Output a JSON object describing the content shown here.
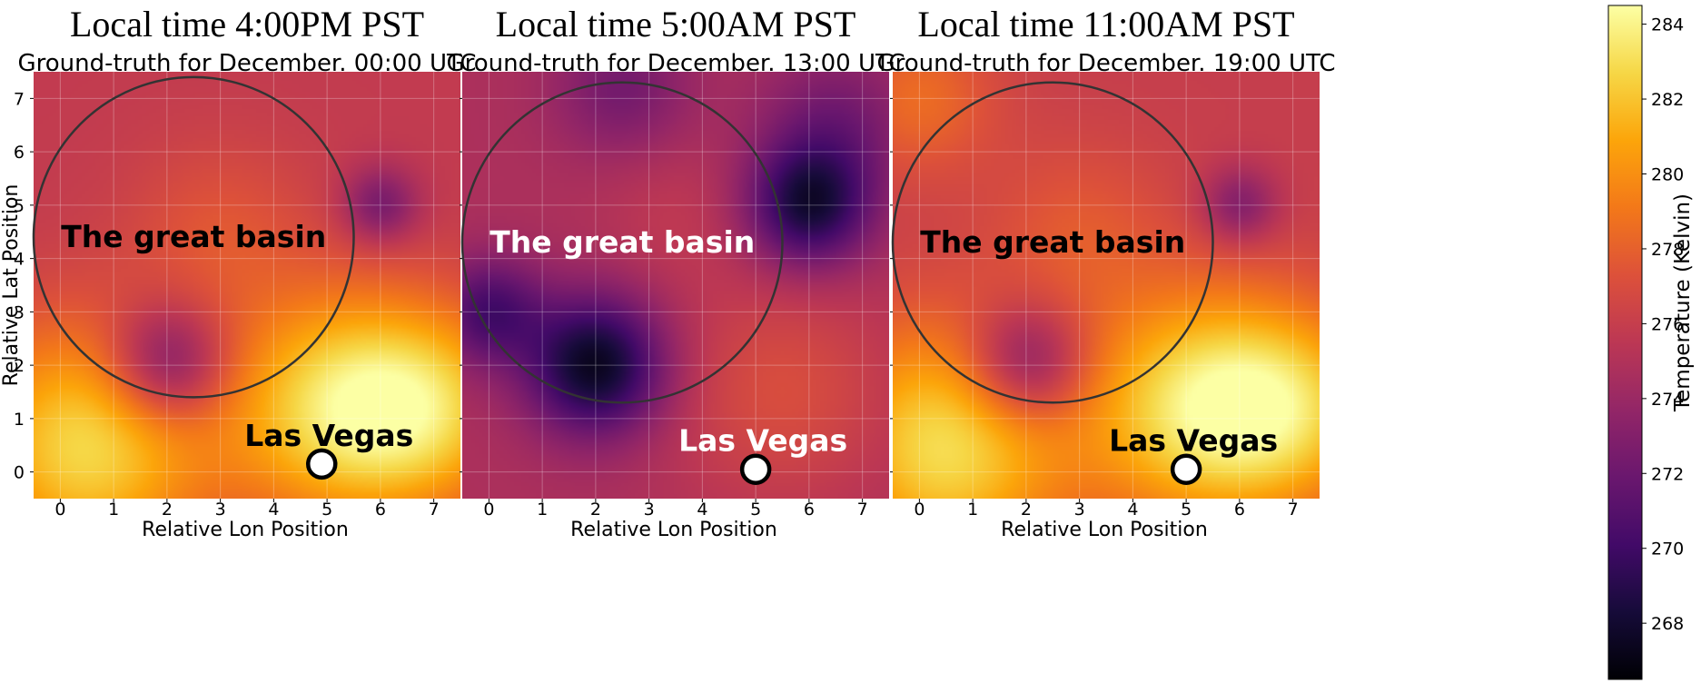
{
  "chart_data": {
    "type": "heatmap",
    "colormap": "inferno",
    "panels": [
      {
        "title": "Local time 4:00PM PST",
        "subtitle": "Ground-truth for December. 00:00 UTC",
        "xlabel": "Relative Lon Position",
        "ylabel": "Relative Lat Position",
        "xticks": [
          0,
          1,
          2,
          3,
          4,
          5,
          6,
          7
        ],
        "yticks": [
          0,
          1,
          2,
          3,
          4,
          5,
          6,
          7
        ],
        "xlim": [
          -0.5,
          7.5
        ],
        "ylim": [
          -0.5,
          7.5
        ],
        "grid": true,
        "base_temp": 275.8,
        "temperature_features": [
          {
            "x": 2,
            "y": 2,
            "delta": -5.2,
            "sigma": 0.8
          },
          {
            "x": 6,
            "y": 5,
            "delta": -3.5,
            "sigma": 0.5
          },
          {
            "x": 0.5,
            "y": 0.5,
            "delta": 7,
            "sigma": 1.6
          },
          {
            "x": 5.2,
            "y": 1.2,
            "delta": 6.8,
            "sigma": 1.5
          },
          {
            "x": 7,
            "y": 1.2,
            "delta": 5,
            "sigma": 1.3
          },
          {
            "x": 3,
            "y": 4.5,
            "delta": 1.6,
            "sigma": 1.2
          }
        ],
        "circle": {
          "cx": 2.5,
          "cy": 4.4,
          "r": 3.0
        },
        "region_label": {
          "text": "The great basin",
          "x": 2.5,
          "y": 4.4,
          "color": "#000000"
        },
        "city": {
          "name": "Las Vegas",
          "x": 4.9,
          "y": 0.15,
          "label_color": "#000000"
        }
      },
      {
        "title": "Local time 5:00AM PST",
        "subtitle": "Ground-truth for December. 13:00 UTC",
        "xlabel": "Relative Lon Position",
        "ylabel": "",
        "xticks": [
          0,
          1,
          2,
          3,
          4,
          5,
          6,
          7
        ],
        "yticks": [
          0,
          1,
          2,
          3,
          4,
          5,
          6,
          7
        ],
        "xlim": [
          -0.5,
          7.5
        ],
        "ylim": [
          -0.5,
          7.5
        ],
        "grid": true,
        "base_temp": 274.8,
        "temperature_features": [
          {
            "x": 2,
            "y": 2,
            "delta": -7.5,
            "sigma": 0.9
          },
          {
            "x": 6,
            "y": 5,
            "delta": -6.5,
            "sigma": 0.8
          },
          {
            "x": 0,
            "y": 3,
            "delta": -4.5,
            "sigma": 0.7
          },
          {
            "x": 2.5,
            "y": 7.2,
            "delta": -2.5,
            "sigma": 0.9
          },
          {
            "x": 6.5,
            "y": 6.5,
            "delta": -2.5,
            "sigma": 1.0
          },
          {
            "x": 5.5,
            "y": 1.5,
            "delta": 2.2,
            "sigma": 1.5
          },
          {
            "x": 3.5,
            "y": 4.8,
            "delta": 0.8,
            "sigma": 1.0
          }
        ],
        "circle": {
          "cx": 2.5,
          "cy": 4.3,
          "r": 3.0
        },
        "region_label": {
          "text": "The great basin",
          "x": 2.5,
          "y": 4.3,
          "color": "#ffffff"
        },
        "city": {
          "name": "Las Vegas",
          "x": 5.0,
          "y": 0.05,
          "label_color": "#ffffff"
        }
      },
      {
        "title": "Local time 11:00AM PST",
        "subtitle": "Ground-truth for December. 19:00 UTC",
        "xlabel": "Relative Lon Position",
        "ylabel": "",
        "xticks": [
          0,
          1,
          2,
          3,
          4,
          5,
          6,
          7
        ],
        "yticks": [
          0,
          1,
          2,
          3,
          4,
          5,
          6,
          7
        ],
        "xlim": [
          -0.5,
          7.5
        ],
        "ylim": [
          -0.5,
          7.5
        ],
        "grid": true,
        "base_temp": 276.0,
        "temperature_features": [
          {
            "x": 2,
            "y": 2,
            "delta": -5.0,
            "sigma": 0.8
          },
          {
            "x": 6,
            "y": 5,
            "delta": -3.2,
            "sigma": 0.5
          },
          {
            "x": 0.5,
            "y": 0.5,
            "delta": 7,
            "sigma": 1.6
          },
          {
            "x": 5.2,
            "y": 1.2,
            "delta": 6.8,
            "sigma": 1.5
          },
          {
            "x": 7,
            "y": 1.2,
            "delta": 5,
            "sigma": 1.3
          },
          {
            "x": 0,
            "y": 7,
            "delta": 2.5,
            "sigma": 1.0
          },
          {
            "x": 3,
            "y": 4.5,
            "delta": 1.6,
            "sigma": 1.2
          }
        ],
        "circle": {
          "cx": 2.5,
          "cy": 4.3,
          "r": 3.0
        },
        "region_label": {
          "text": "The great basin",
          "x": 2.5,
          "y": 4.3,
          "color": "#000000"
        },
        "city": {
          "name": "Las Vegas",
          "x": 5.0,
          "y": 0.05,
          "label_color": "#000000"
        }
      }
    ],
    "colorbar": {
      "label": "Temperature (Kelvin)",
      "min": 266.5,
      "max": 284.5,
      "ticks": [
        268,
        270,
        272,
        274,
        276,
        278,
        280,
        282,
        284
      ]
    }
  }
}
